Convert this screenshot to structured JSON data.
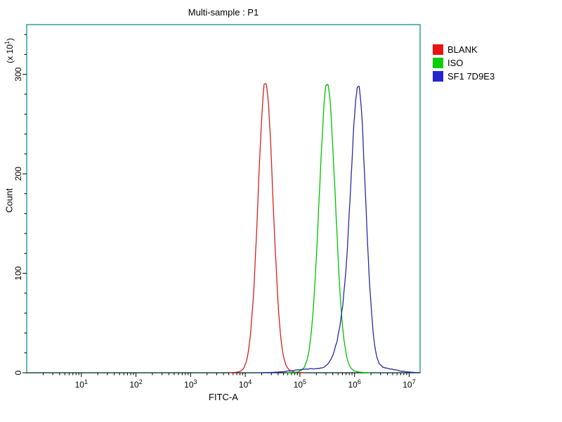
{
  "chart_data": {
    "type": "histogram-overlay",
    "title": "Multi-sample : P1",
    "xlabel": "FITC-A",
    "x_axis": {
      "scale": "log10",
      "tick_label_base": "10",
      "tick_exponents": [
        1,
        2,
        3,
        4,
        5,
        6,
        7
      ],
      "range_log10": [
        0,
        7.2
      ]
    },
    "y_axis": {
      "label": "Count",
      "multiplier_prefix": "(x 10",
      "multiplier_exp": "1",
      "multiplier_suffix": ")",
      "major_ticks": [
        0,
        100,
        200,
        300
      ],
      "minor_step": 20,
      "range": [
        0,
        350
      ]
    },
    "frame_color": "#2f9e9e",
    "grid": false,
    "legend_position": "top-right-outside",
    "series": [
      {
        "name": "BLANK",
        "color": "#d42020",
        "peak_x": "2.3e4",
        "peak_count": 290,
        "components": [
          {
            "mu": 4.37,
            "sigma": 0.135,
            "amp": 287
          },
          {
            "mu": 4.4,
            "sigma": 0.25,
            "amp": 5
          }
        ]
      },
      {
        "name": "ISO",
        "color": "#00c000",
        "peak_x": "3.2e5",
        "peak_count": 289,
        "components": [
          {
            "mu": 5.5,
            "sigma": 0.145,
            "amp": 286
          },
          {
            "mu": 5.52,
            "sigma": 0.28,
            "amp": 5
          }
        ]
      },
      {
        "name": "SF1 7D9E3",
        "color": "#2929a3",
        "peak_x": "1.2e6",
        "peak_count": 285,
        "components": [
          {
            "mu": 6.08,
            "sigma": 0.13,
            "amp": 248
          },
          {
            "mu": 5.9,
            "sigma": 0.18,
            "amp": 60
          },
          {
            "mu": 5.25,
            "sigma": 0.35,
            "amp": 4
          },
          {
            "mu": 6.45,
            "sigma": 0.28,
            "amp": 5
          }
        ]
      }
    ]
  },
  "legend": {
    "items": [
      {
        "label": "BLANK",
        "color": "#e81414"
      },
      {
        "label": "ISO",
        "color": "#0ad00a"
      },
      {
        "label": "SF1 7D9E3",
        "color": "#2525cf"
      }
    ]
  }
}
